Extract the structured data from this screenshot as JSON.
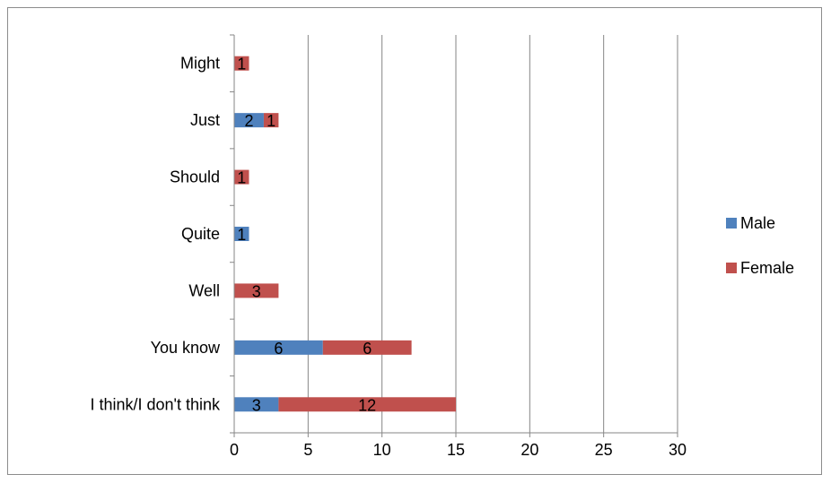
{
  "chart_data": {
    "type": "bar",
    "orientation": "horizontal",
    "stacked": true,
    "categories": [
      "Might",
      "Just",
      "Should",
      "Quite",
      "Well",
      "You know",
      "I think/I don't think"
    ],
    "series": [
      {
        "name": "Male",
        "color": "#4f81bd",
        "values": [
          0,
          2,
          0,
          1,
          0,
          6,
          3
        ]
      },
      {
        "name": "Female",
        "color": "#c0504d",
        "values": [
          1,
          1,
          1,
          0,
          3,
          6,
          12
        ]
      }
    ],
    "x_ticks": [
      "0",
      "5",
      "10",
      "15",
      "20",
      "25",
      "30"
    ],
    "xlim": [
      0,
      30
    ],
    "grid": true,
    "legend_position": "right",
    "title": "",
    "xlabel": "",
    "ylabel": ""
  }
}
